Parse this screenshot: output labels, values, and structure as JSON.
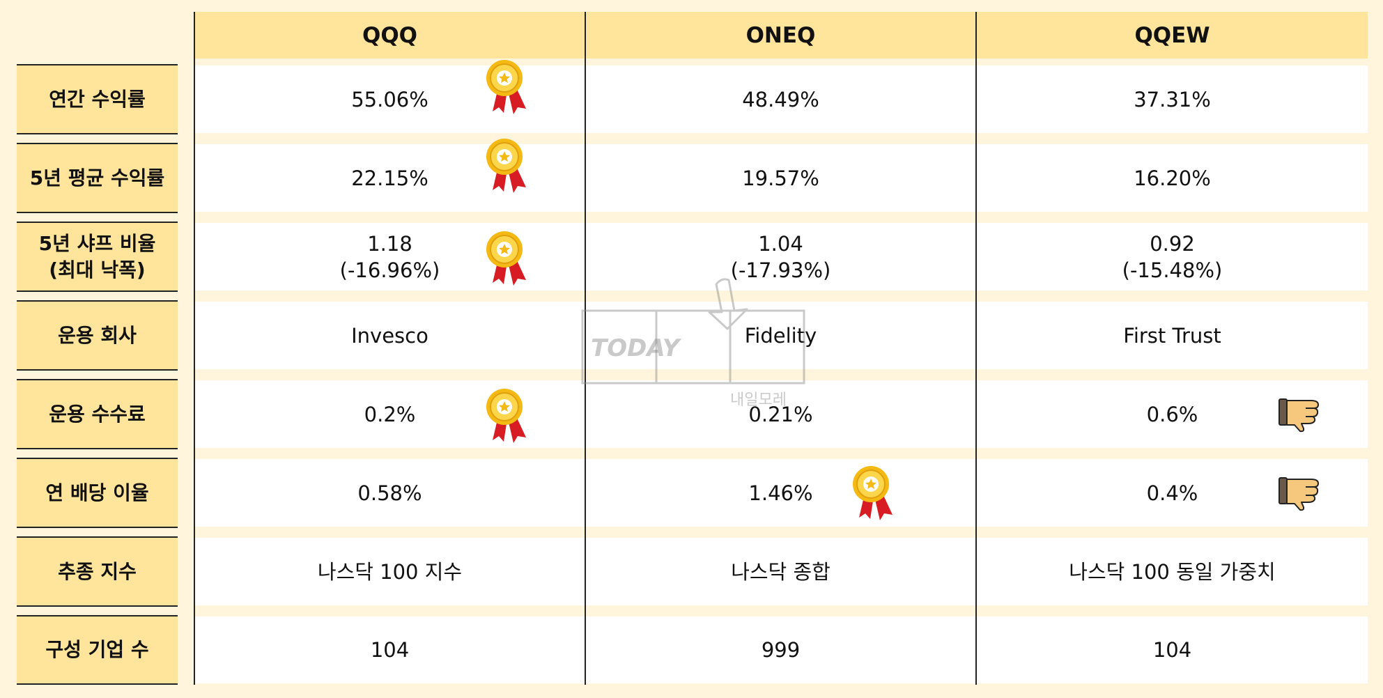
{
  "columns": [
    "QQQ",
    "ONEQ",
    "QQEW"
  ],
  "rows": [
    {
      "label": "연간 수익률",
      "values": [
        "55.06%",
        "48.49%",
        "37.31%"
      ]
    },
    {
      "label": "5년 평균 수익률",
      "values": [
        "22.15%",
        "19.57%",
        "16.20%"
      ]
    },
    {
      "label": "5년 샤프 비율\n(최대 낙폭)",
      "values": [
        "1.18\n(-16.96%)",
        "1.04\n(-17.93%)",
        "0.92\n(-15.48%)"
      ]
    },
    {
      "label": "운용 회사",
      "values": [
        "Invesco",
        "Fidelity",
        "First Trust"
      ]
    },
    {
      "label": "운용 수수료",
      "values": [
        "0.2%",
        "0.21%",
        "0.6%"
      ]
    },
    {
      "label": "연 배당 이율",
      "values": [
        "0.58%",
        "1.46%",
        "0.4%"
      ]
    },
    {
      "label": "추종 지수",
      "values": [
        "나스닥 100 지수",
        "나스닥 종합",
        "나스닥 100 동일 가중치"
      ]
    },
    {
      "label": "구성 기업 수",
      "values": [
        "104",
        "999",
        "104"
      ]
    }
  ],
  "watermark": {
    "logo_text": "TODAY",
    "caption": "내일모레"
  },
  "colors": {
    "background": "#fef5dc",
    "header": "#ffe59c",
    "cell": "#ffffff",
    "medal_gold": "#f5b914",
    "medal_ribbon": "#d81c24",
    "thumb": "#f6c87e"
  },
  "icons": {
    "best": "award-medal-icon",
    "worst": "thumbs-down-icon"
  }
}
